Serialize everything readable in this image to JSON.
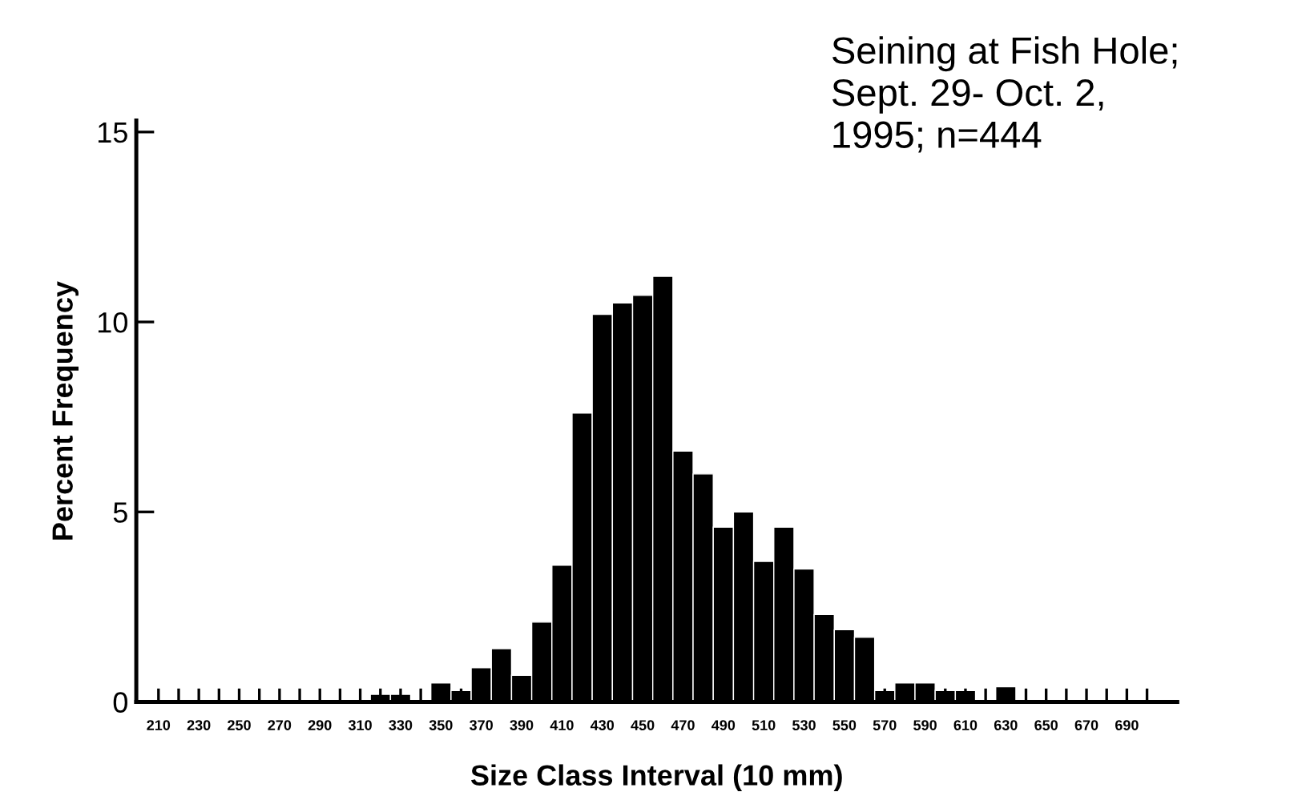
{
  "chart_data": {
    "type": "histogram",
    "xlabel": "Size Class Interval (10 mm)",
    "ylabel": "Percent Frequency",
    "annotations": [
      "Seining at Fish Hole;\nSept. 29- Oct. 2,\n1995; n=444"
    ],
    "bins": [
      315,
      325,
      335,
      345,
      355,
      365,
      375,
      385,
      395,
      405,
      415,
      425,
      435,
      445,
      455,
      465,
      475,
      485,
      495,
      505,
      515,
      525,
      535,
      545,
      555,
      565,
      575,
      585,
      595,
      605,
      615,
      625,
      635
    ],
    "values": [
      0.2,
      0.2,
      0,
      0.5,
      0.3,
      0.9,
      1.4,
      0.7,
      2.1,
      3.6,
      7.6,
      10.2,
      10.5,
      10.7,
      11.2,
      6.6,
      6.0,
      4.6,
      5.0,
      3.7,
      4.6,
      3.5,
      2.3,
      1.9,
      1.7,
      0.3,
      0.5,
      0.5,
      0.3,
      0.3,
      0,
      0.4
    ],
    "color": "#000000",
    "xlim": [
      199,
      715
    ],
    "xticks": [
      210,
      {
        "value": 220,
        "label": null
      },
      230,
      {
        "value": 240,
        "label": null
      },
      250,
      {
        "value": 260,
        "label": null
      },
      270,
      {
        "value": 280,
        "label": null
      },
      290,
      {
        "value": 300,
        "label": null
      },
      310,
      {
        "value": 320,
        "label": null
      },
      330,
      {
        "value": 340,
        "label": null
      },
      350,
      {
        "value": 360,
        "label": null
      },
      370,
      {
        "value": 380,
        "label": null
      },
      390,
      {
        "value": 400,
        "label": null
      },
      410,
      {
        "value": 420,
        "label": null
      },
      430,
      {
        "value": 440,
        "label": null
      },
      450,
      {
        "value": 460,
        "label": null
      },
      470,
      {
        "value": 480,
        "label": null
      },
      490,
      {
        "value": 500,
        "label": null
      },
      510,
      {
        "value": 520,
        "label": null
      },
      530,
      {
        "value": 540,
        "label": null
      },
      550,
      {
        "value": 560,
        "label": null
      },
      570,
      {
        "value": 580,
        "label": null
      },
      590,
      {
        "value": 600,
        "label": null
      },
      610,
      {
        "value": 620,
        "label": null
      },
      630,
      {
        "value": 640,
        "label": null
      },
      650,
      {
        "value": 660,
        "label": null
      },
      670,
      {
        "value": 680,
        "label": null
      },
      690,
      {
        "value": 700,
        "label": null
      }
    ],
    "ylim": [
      0,
      15.3
    ],
    "yticks": [
      0,
      5,
      10,
      15
    ],
    "grid": false,
    "legend": false
  }
}
